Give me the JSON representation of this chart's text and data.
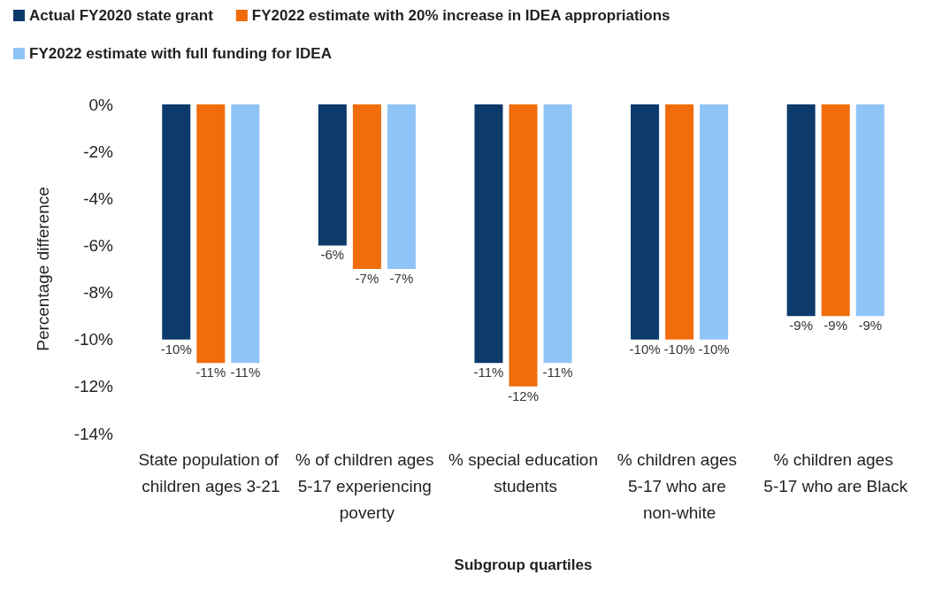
{
  "chart_data": {
    "type": "bar",
    "xlabel": "Subgroup quartiles",
    "ylabel": "Percentage difference",
    "categories": [
      "State population of children ages 3-21",
      "% of children ages 5-17 experiencing poverty",
      "% special education students",
      "% children ages 5-17 who are non-white",
      "% children ages 5-17 who are Black"
    ],
    "series": [
      {
        "name": "Actual FY2020 state grant",
        "color": "#0b3a6b",
        "values": [
          -10,
          -6,
          -11,
          -10,
          -9
        ],
        "value_labels": [
          "-10%",
          "-6%",
          "-11%",
          "-10%",
          "-9%"
        ]
      },
      {
        "name": "FY2022 estimate with 20% increase in IDEA appropriations",
        "color": "#f06c0c",
        "values": [
          -11,
          -7,
          -12,
          -10,
          -9
        ],
        "value_labels": [
          "-11%",
          "-7%",
          "-12%",
          "-10%",
          "-9%"
        ]
      },
      {
        "name": "FY2022 estimate with full funding for IDEA",
        "color": "#8fc4f6",
        "values": [
          -11,
          -7,
          -11,
          -10,
          -9
        ],
        "value_labels": [
          "-11%",
          "-7%",
          "-11%",
          "-10%",
          "-9%"
        ]
      }
    ],
    "ylim": [
      -14,
      0
    ],
    "yticks": [
      {
        "value": -14,
        "label": "-14%"
      },
      {
        "value": -12,
        "label": "-12%"
      },
      {
        "value": -10,
        "label": "-10%"
      },
      {
        "value": -8,
        "label": "-8%"
      },
      {
        "value": -6,
        "label": "-6%"
      },
      {
        "value": -4,
        "label": "-4%"
      },
      {
        "value": -2,
        "label": "-2%"
      },
      {
        "value": 0,
        "label": "0%"
      }
    ],
    "grid": false,
    "legend": "top left"
  }
}
